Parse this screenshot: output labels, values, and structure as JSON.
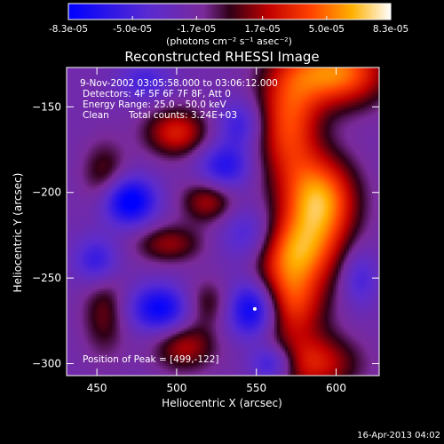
{
  "colorbar": {
    "tick_labels": [
      "-8.3e-05",
      "-5.0e-05",
      "-1.7e-05",
      "1.7e-05",
      "5.0e-05",
      "8.3e-05"
    ],
    "tick_values": [
      -8.3e-05,
      -5e-05,
      -1.7e-05,
      1.7e-05,
      5e-05,
      8.3e-05
    ],
    "range": [
      -8.3e-05,
      8.3e-05
    ],
    "unit_label": "(photons cm⁻² s⁻¹ asec⁻²)"
  },
  "colors": {
    "background": "#000000",
    "text": "#ffffff",
    "colormap": [
      "#0000ff",
      "#5a2bd0",
      "#7a2a9a",
      "#300018",
      "#c00000",
      "#ff4000",
      "#ffb000",
      "#ffffff"
    ]
  },
  "chart_data": {
    "type": "heatmap",
    "title": "Reconstructed RHESSI Image",
    "xlabel": "Heliocentric X (arcsec)",
    "ylabel": "Heliocentric Y (arcsec)",
    "xlim": [
      431,
      627
    ],
    "ylim": [
      -307,
      -127
    ],
    "x_ticks": [
      450,
      500,
      550,
      600
    ],
    "x_tick_labels": [
      "450",
      "500",
      "550",
      "600"
    ],
    "y_ticks": [
      -150,
      -200,
      -250,
      -300
    ],
    "y_tick_labels": [
      "−150",
      "−200",
      "−250",
      "−300"
    ],
    "annotations": {
      "time_range": "9-Nov-2002 03:05:58.000 to 03:06:12.000",
      "detectors": "Detectors: 4F 5F 6F 7F 8F, Att 0",
      "energy_range": "Energy Range: 25.0 – 50.0 keV",
      "algorithm": "Clean",
      "total_counts": "Total counts: 3.24E+03",
      "peak": "Position of Peak = [499,-122]"
    },
    "value_range": [
      -8.3e-05,
      8.3e-05
    ],
    "blobs": [
      {
        "x": 600,
        "y": -130,
        "sx": 22,
        "sy": 14,
        "v": 7.5e-05
      },
      {
        "x": 570,
        "y": -160,
        "sx": 14,
        "sy": 25,
        "v": 6e-05
      },
      {
        "x": 590,
        "y": -205,
        "sx": 16,
        "sy": 18,
        "v": 8e-05
      },
      {
        "x": 575,
        "y": -235,
        "sx": 18,
        "sy": 15,
        "v": 6.5e-05
      },
      {
        "x": 570,
        "y": -265,
        "sx": 16,
        "sy": 16,
        "v": 6e-05
      },
      {
        "x": 585,
        "y": -300,
        "sx": 20,
        "sy": 12,
        "v": 5e-05
      },
      {
        "x": 500,
        "y": -165,
        "sx": 14,
        "sy": 10,
        "v": 5e-05
      },
      {
        "x": 520,
        "y": -205,
        "sx": 12,
        "sy": 9,
        "v": 4e-05
      },
      {
        "x": 455,
        "y": -190,
        "sx": 10,
        "sy": 14,
        "v": 3e-05
      },
      {
        "x": 495,
        "y": -230,
        "sx": 15,
        "sy": 8,
        "v": 3.5e-05
      },
      {
        "x": 520,
        "y": -265,
        "sx": 12,
        "sy": 10,
        "v": 3e-05
      },
      {
        "x": 505,
        "y": -290,
        "sx": 14,
        "sy": 10,
        "v": 4e-05
      },
      {
        "x": 455,
        "y": -270,
        "sx": 10,
        "sy": 18,
        "v": 3e-05
      },
      {
        "x": 470,
        "y": -205,
        "sx": 12,
        "sy": 10,
        "v": -7e-05
      },
      {
        "x": 450,
        "y": -240,
        "sx": 10,
        "sy": 10,
        "v": -4e-05
      },
      {
        "x": 490,
        "y": -268,
        "sx": 14,
        "sy": 10,
        "v": -6e-05
      },
      {
        "x": 548,
        "y": -268,
        "sx": 12,
        "sy": 12,
        "v": -7.5e-05
      },
      {
        "x": 530,
        "y": -185,
        "sx": 12,
        "sy": 10,
        "v": -4.5e-05
      },
      {
        "x": 540,
        "y": -160,
        "sx": 10,
        "sy": 10,
        "v": -3.5e-05
      },
      {
        "x": 480,
        "y": -135,
        "sx": 12,
        "sy": 8,
        "v": -3e-05
      },
      {
        "x": 545,
        "y": -225,
        "sx": 12,
        "sy": 12,
        "v": -3.5e-05
      },
      {
        "x": 560,
        "y": -300,
        "sx": 10,
        "sy": 8,
        "v": -5e-05
      },
      {
        "x": 615,
        "y": -250,
        "sx": 8,
        "sy": 12,
        "v": -3e-05
      }
    ],
    "background_value": -2.2e-05,
    "min_marker": {
      "x": 549,
      "y": -268
    }
  },
  "footer": {
    "timestamp": "16-Apr-2013 04:02"
  }
}
